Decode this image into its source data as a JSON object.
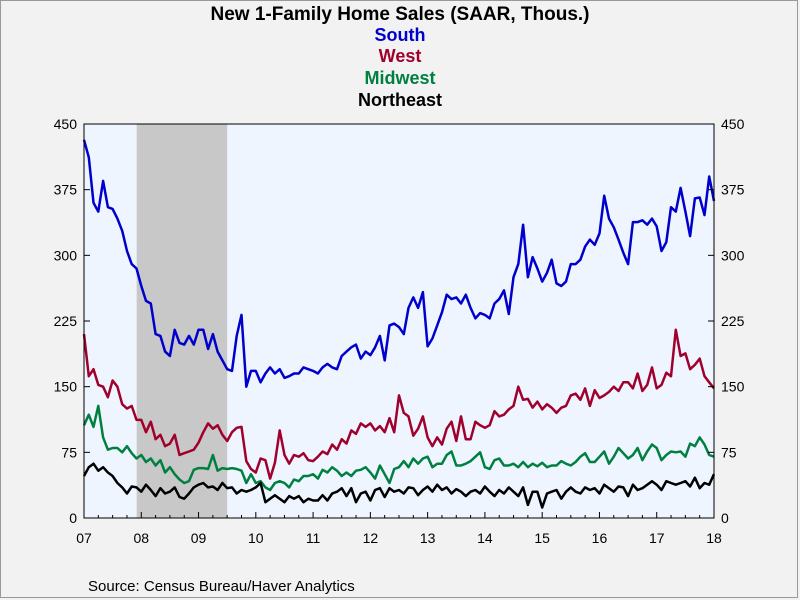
{
  "chart_data": {
    "type": "line",
    "title": "New 1-Family Home Sales (SAAR, Thous.)",
    "legend_placement": "top-center",
    "series": [
      {
        "name": "South",
        "color": "#0000cc",
        "values": [
          432,
          412,
          360,
          350,
          385,
          355,
          353,
          342,
          328,
          305,
          290,
          285,
          265,
          248,
          245,
          210,
          208,
          190,
          185,
          215,
          200,
          198,
          208,
          198,
          215,
          215,
          193,
          210,
          190,
          180,
          170,
          168,
          208,
          232,
          150,
          168,
          168,
          155,
          165,
          172,
          165,
          170,
          160,
          162,
          165,
          165,
          172,
          170,
          168,
          165,
          172,
          176,
          172,
          170,
          185,
          190,
          195,
          198,
          182,
          190,
          186,
          195,
          208,
          180,
          220,
          222,
          218,
          210,
          240,
          252,
          240,
          258,
          196,
          205,
          220,
          235,
          255,
          250,
          252,
          245,
          255,
          240,
          228,
          234,
          232,
          228,
          245,
          250,
          260,
          233,
          275,
          290,
          335,
          275,
          298,
          285,
          270,
          280,
          295,
          268,
          265,
          270,
          290,
          290,
          295,
          310,
          318,
          312,
          325,
          368,
          342,
          332,
          318,
          303,
          290,
          338,
          338,
          340,
          335,
          342,
          333,
          305,
          315,
          355,
          350,
          377,
          350,
          322,
          365,
          366,
          346,
          390,
          362
        ]
      },
      {
        "name": "West",
        "color": "#a0002c",
        "values": [
          210,
          162,
          170,
          152,
          150,
          138,
          157,
          150,
          130,
          125,
          128,
          112,
          112,
          98,
          110,
          90,
          95,
          82,
          85,
          95,
          72,
          74,
          76,
          78,
          86,
          98,
          108,
          102,
          106,
          95,
          88,
          98,
          103,
          104,
          65,
          56,
          52,
          68,
          66,
          45,
          63,
          100,
          72,
          62,
          72,
          70,
          74,
          66,
          65,
          70,
          76,
          73,
          84,
          78,
          90,
          85,
          100,
          96,
          108,
          104,
          108,
          100,
          105,
          98,
          114,
          98,
          140,
          120,
          116,
          94,
          102,
          116,
          92,
          82,
          92,
          84,
          102,
          110,
          88,
          116,
          90,
          90,
          110,
          106,
          103,
          106,
          122,
          116,
          118,
          124,
          128,
          150,
          135,
          136,
          126,
          133,
          124,
          130,
          126,
          120,
          126,
          128,
          140,
          142,
          135,
          148,
          128,
          146,
          137,
          140,
          144,
          150,
          145,
          155,
          155,
          148,
          165,
          145,
          152,
          172,
          148,
          152,
          166,
          162,
          215,
          185,
          188,
          170,
          175,
          182,
          162,
          155,
          148
        ]
      },
      {
        "name": "Midwest",
        "color": "#008040",
        "values": [
          106,
          118,
          104,
          128,
          92,
          78,
          80,
          80,
          75,
          82,
          74,
          68,
          72,
          64,
          68,
          60,
          66,
          52,
          58,
          50,
          44,
          40,
          42,
          55,
          57,
          57,
          56,
          72,
          54,
          57,
          56,
          57,
          56,
          54,
          40,
          50,
          40,
          42,
          35,
          32,
          40,
          42,
          40,
          35,
          44,
          42,
          48,
          48,
          50,
          45,
          55,
          52,
          58,
          54,
          48,
          52,
          48,
          54,
          55,
          58,
          52,
          45,
          60,
          50,
          40,
          56,
          58,
          65,
          58,
          68,
          62,
          68,
          70,
          58,
          62,
          62,
          72,
          76,
          60,
          60,
          62,
          65,
          70,
          75,
          58,
          56,
          66,
          68,
          60,
          60,
          62,
          58,
          64,
          58,
          62,
          59,
          63,
          58,
          60,
          60,
          65,
          62,
          60,
          64,
          70,
          74,
          64,
          64,
          70,
          76,
          62,
          70,
          80,
          74,
          68,
          72,
          80,
          66,
          76,
          84,
          80,
          66,
          72,
          76,
          75,
          76,
          70,
          85,
          82,
          92,
          84,
          72,
          70
        ]
      },
      {
        "name": "Northeast",
        "color": "#000000",
        "values": [
          48,
          58,
          62,
          54,
          58,
          52,
          48,
          40,
          35,
          28,
          36,
          35,
          30,
          38,
          32,
          25,
          34,
          28,
          30,
          35,
          24,
          22,
          28,
          35,
          38,
          40,
          35,
          36,
          32,
          40,
          34,
          35,
          28,
          32,
          30,
          32,
          35,
          40,
          18,
          22,
          26,
          22,
          18,
          25,
          22,
          25,
          18,
          22,
          20,
          20,
          26,
          20,
          28,
          30,
          34,
          25,
          34,
          18,
          28,
          30,
          20,
          32,
          34,
          24,
          34,
          30,
          32,
          28,
          35,
          34,
          26,
          32,
          36,
          30,
          38,
          32,
          35,
          28,
          33,
          30,
          25,
          30,
          32,
          28,
          36,
          30,
          25,
          32,
          28,
          35,
          30,
          25,
          35,
          15,
          30,
          30,
          12,
          28,
          30,
          32,
          22,
          30,
          35,
          30,
          28,
          35,
          32,
          34,
          28,
          38,
          34,
          30,
          36,
          35,
          25,
          38,
          32,
          34,
          38,
          42,
          38,
          32,
          42,
          40,
          38,
          40,
          42,
          36,
          46,
          34,
          40,
          38,
          50
        ]
      }
    ],
    "x_labels": [
      "07",
      "08",
      "09",
      "10",
      "11",
      "12",
      "13",
      "14",
      "15",
      "16",
      "17",
      "18"
    ],
    "x_start": 2007,
    "x_end": 2018,
    "y_ticks": [
      0,
      75,
      150,
      225,
      300,
      375,
      450
    ],
    "ylim": [
      0,
      450
    ],
    "recession_shading": {
      "start": 2007.92,
      "end": 2009.5
    },
    "grid": false,
    "right_axis": true,
    "source": "Source:  Census Bureau/Haver Analytics"
  }
}
